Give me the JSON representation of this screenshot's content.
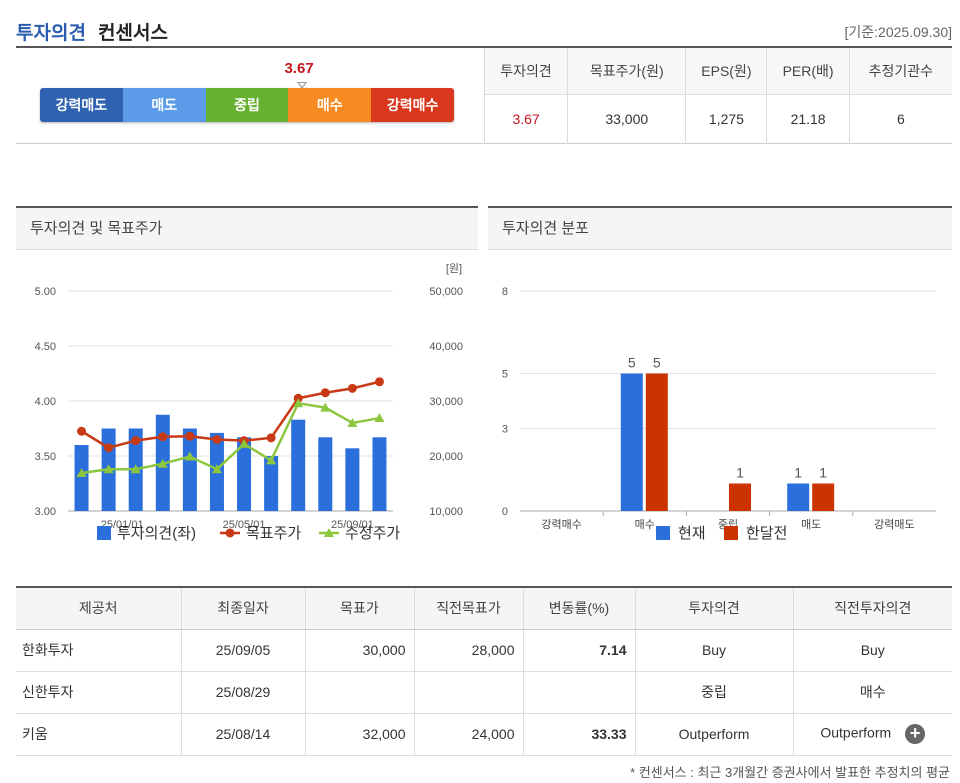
{
  "header": {
    "title_a": "투자의견",
    "title_b": "컨센서스",
    "date": "[기준:2025.09.30]"
  },
  "gauge": {
    "value": "3.67",
    "value_num": 3.67,
    "segments": [
      {
        "label": "강력매도",
        "color": "#2f62b1"
      },
      {
        "label": "매도",
        "color": "#5b9be8"
      },
      {
        "label": "중립",
        "color": "#66b12f"
      },
      {
        "label": "매수",
        "color": "#f78a22"
      },
      {
        "label": "강력매수",
        "color": "#d9381e"
      }
    ]
  },
  "summary": {
    "headers": [
      "투자의견",
      "목표주가(원)",
      "EPS(원)",
      "PER(배)",
      "추정기관수"
    ],
    "values": [
      "3.67",
      "33,000",
      "1,275",
      "21.18",
      "6"
    ]
  },
  "chart1_title": "투자의견 및 목표주가",
  "chart2_title": "투자의견 분포",
  "chart_data": [
    {
      "type": "bar",
      "y_left_ticks": [
        "5.00",
        "4.50",
        "4.00",
        "3.50",
        "3.00"
      ],
      "y_right_ticks": [
        "50,000",
        "40,000",
        "30,000",
        "20,000",
        "10,000"
      ],
      "y_right_unit": "[원]",
      "x_ticks": [
        "25/01/01",
        "25/05/01",
        "25/09/01"
      ],
      "ylim_left": [
        3.0,
        5.0
      ],
      "ylim_right": [
        10000,
        50000
      ],
      "series": [
        {
          "name": "투자의견(좌)",
          "type": "bar",
          "color": "#2a6fdb",
          "values": [
            3.6,
            3.75,
            3.75,
            3.875,
            3.75,
            3.71,
            3.67,
            3.5,
            3.83,
            3.67,
            3.57,
            3.67
          ]
        },
        {
          "name": "목표주가",
          "type": "line",
          "color": "#c83a15",
          "values": [
            24500,
            21500,
            22800,
            23500,
            23600,
            23000,
            22800,
            23300,
            30500,
            31500,
            32300,
            33500
          ]
        },
        {
          "name": "수정주가",
          "type": "line",
          "color": "#8cc63f",
          "values": [
            16900,
            17600,
            17600,
            18600,
            19900,
            17600,
            22200,
            19200,
            29600,
            28800,
            26000,
            26900
          ]
        }
      ],
      "legend": "bottom"
    },
    {
      "type": "bar",
      "categories": [
        "강력매수",
        "매수",
        "중립",
        "매도",
        "강력매도"
      ],
      "y_ticks": [
        "8",
        "5",
        "3",
        "0"
      ],
      "ylim": [
        0,
        8
      ],
      "series": [
        {
          "name": "현재",
          "color": "#2a6fdb",
          "values": [
            0,
            5,
            0,
            1,
            0
          ]
        },
        {
          "name": "한달전",
          "color": "#cc3300",
          "values": [
            0,
            5,
            1,
            1,
            0
          ]
        }
      ],
      "legend": "bottom"
    }
  ],
  "table": {
    "headers": [
      "제공처",
      "최종일자",
      "목표가",
      "직전목표가",
      "변동률(%)",
      "투자의견",
      "직전투자의견"
    ],
    "rows": [
      [
        "한화투자",
        "25/09/05",
        "30,000",
        "28,000",
        "7.14",
        "Buy",
        "Buy"
      ],
      [
        "신한투자",
        "25/08/29",
        "",
        "",
        "",
        "중립",
        "매수"
      ],
      [
        "키움",
        "25/08/14",
        "32,000",
        "24,000",
        "33.33",
        "Outperform",
        "Outperform"
      ]
    ]
  },
  "footnote": "* 컨센서스 : 최근 3개월간 증권사에서 발표한 추정치의 평균"
}
